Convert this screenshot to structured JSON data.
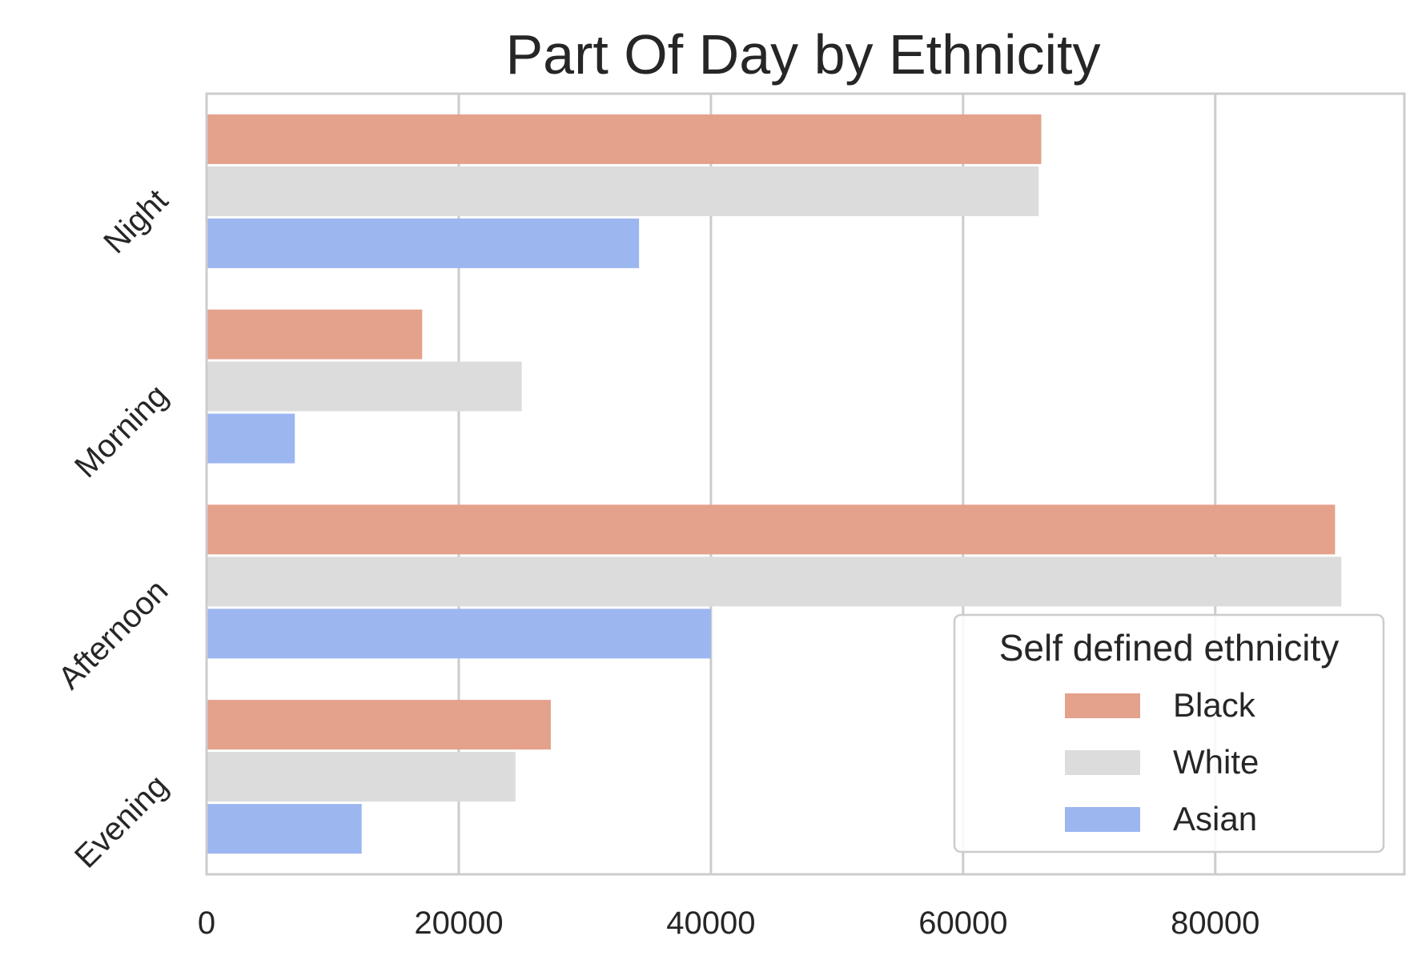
{
  "chart_data": {
    "type": "bar",
    "orientation": "horizontal",
    "title": "Part Of Day by Ethnicity",
    "xlabel": "",
    "ylabel": "",
    "categories": [
      "Night",
      "Morning",
      "Afternoon",
      "Evening"
    ],
    "series": [
      {
        "name": "Black",
        "color": "#e4a18b",
        "values": [
          66200,
          17100,
          89500,
          27300
        ]
      },
      {
        "name": "White",
        "color": "#dcdcdc",
        "values": [
          66000,
          25000,
          90000,
          24500
        ]
      },
      {
        "name": "Asian",
        "color": "#9cb6f0",
        "values": [
          34300,
          7000,
          40000,
          12300
        ]
      }
    ],
    "xlim": [
      0,
      95000
    ],
    "xticks": [
      0,
      20000,
      40000,
      60000,
      80000
    ],
    "xtick_labels": [
      "0",
      "20000",
      "40000",
      "60000",
      "80000"
    ],
    "grid": "vertical",
    "legend": {
      "title": "Self defined ethnicity",
      "position": "lower-right"
    }
  }
}
